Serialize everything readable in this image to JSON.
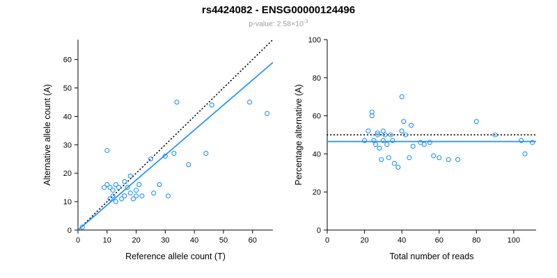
{
  "header": {
    "title": "rs4424082 - ENSG00000124496",
    "pvalue_prefix": "p-value: 2.58×10",
    "pvalue_exponent": "-3"
  },
  "colors": {
    "accent_blue": "#1E90FF",
    "line_black": "#000000",
    "subtitle_gray": "#9B9B9B"
  },
  "chart_data": [
    {
      "type": "scatter",
      "title": "",
      "xlabel": "Reference allele count (T)",
      "ylabel": "Alternative allele count (A)",
      "xlim": [
        0,
        67
      ],
      "ylim": [
        0,
        67
      ],
      "xticks": [
        0,
        10,
        20,
        30,
        40,
        50,
        60
      ],
      "yticks": [
        0,
        10,
        20,
        30,
        40,
        50,
        60
      ],
      "grid": false,
      "point_color": "#1E90FF",
      "points": [
        [
          1.5,
          1
        ],
        [
          9,
          15
        ],
        [
          10,
          16
        ],
        [
          10,
          28
        ],
        [
          11,
          15
        ],
        [
          11,
          11
        ],
        [
          12,
          14
        ],
        [
          12,
          12
        ],
        [
          13,
          16
        ],
        [
          13,
          10
        ],
        [
          14,
          15
        ],
        [
          15,
          11
        ],
        [
          16,
          17
        ],
        [
          16,
          12
        ],
        [
          17,
          15
        ],
        [
          18,
          19
        ],
        [
          18,
          13
        ],
        [
          19,
          11
        ],
        [
          20,
          14
        ],
        [
          20,
          12
        ],
        [
          21,
          16
        ],
        [
          22,
          12
        ],
        [
          25,
          25
        ],
        [
          26,
          13
        ],
        [
          28,
          16
        ],
        [
          30,
          26
        ],
        [
          31,
          12
        ],
        [
          33,
          27
        ],
        [
          34,
          45
        ],
        [
          38,
          23
        ],
        [
          44,
          27
        ],
        [
          46,
          44
        ],
        [
          59,
          45
        ],
        [
          65,
          41
        ]
      ],
      "lines": [
        {
          "label": "identity",
          "style": "dotted",
          "color": "#000000",
          "slope": 1,
          "intercept": 0
        },
        {
          "label": "regression-fit",
          "style": "solid",
          "color": "#1E90FF",
          "slope": 0.88,
          "intercept": 0
        }
      ]
    },
    {
      "type": "scatter",
      "title": "",
      "xlabel": "Total number of reads",
      "ylabel": "Percentage alternative (A)",
      "xlim": [
        0,
        112
      ],
      "ylim": [
        0,
        100
      ],
      "xticks": [
        0,
        20,
        40,
        60,
        80,
        100
      ],
      "yticks": [
        0,
        20,
        40,
        60,
        80,
        100
      ],
      "grid": false,
      "point_color": "#1E90FF",
      "points": [
        [
          20,
          47
        ],
        [
          22,
          52
        ],
        [
          24,
          62
        ],
        [
          24,
          60
        ],
        [
          25,
          47
        ],
        [
          26,
          45
        ],
        [
          27,
          50
        ],
        [
          27,
          51
        ],
        [
          28,
          43
        ],
        [
          29,
          37
        ],
        [
          30,
          52
        ],
        [
          30,
          47
        ],
        [
          31,
          50
        ],
        [
          32,
          45
        ],
        [
          33,
          38
        ],
        [
          34,
          50
        ],
        [
          35,
          47
        ],
        [
          36,
          35
        ],
        [
          38,
          33
        ],
        [
          40,
          70
        ],
        [
          40,
          52
        ],
        [
          41,
          57
        ],
        [
          42,
          50
        ],
        [
          44,
          38
        ],
        [
          45,
          55
        ],
        [
          46,
          44
        ],
        [
          50,
          46
        ],
        [
          52,
          45
        ],
        [
          55,
          46
        ],
        [
          57,
          39
        ],
        [
          60,
          38
        ],
        [
          65,
          37
        ],
        [
          70,
          37
        ],
        [
          80,
          57
        ],
        [
          90,
          50
        ],
        [
          104,
          47
        ],
        [
          106,
          40
        ],
        [
          110,
          46
        ]
      ],
      "lines": [
        {
          "label": "expected-50pct",
          "style": "dotted",
          "color": "#000000",
          "slope": 0,
          "intercept": 50
        },
        {
          "label": "mean-fit",
          "style": "solid",
          "color": "#1E90FF",
          "slope": 0,
          "intercept": 46.5
        }
      ]
    }
  ]
}
